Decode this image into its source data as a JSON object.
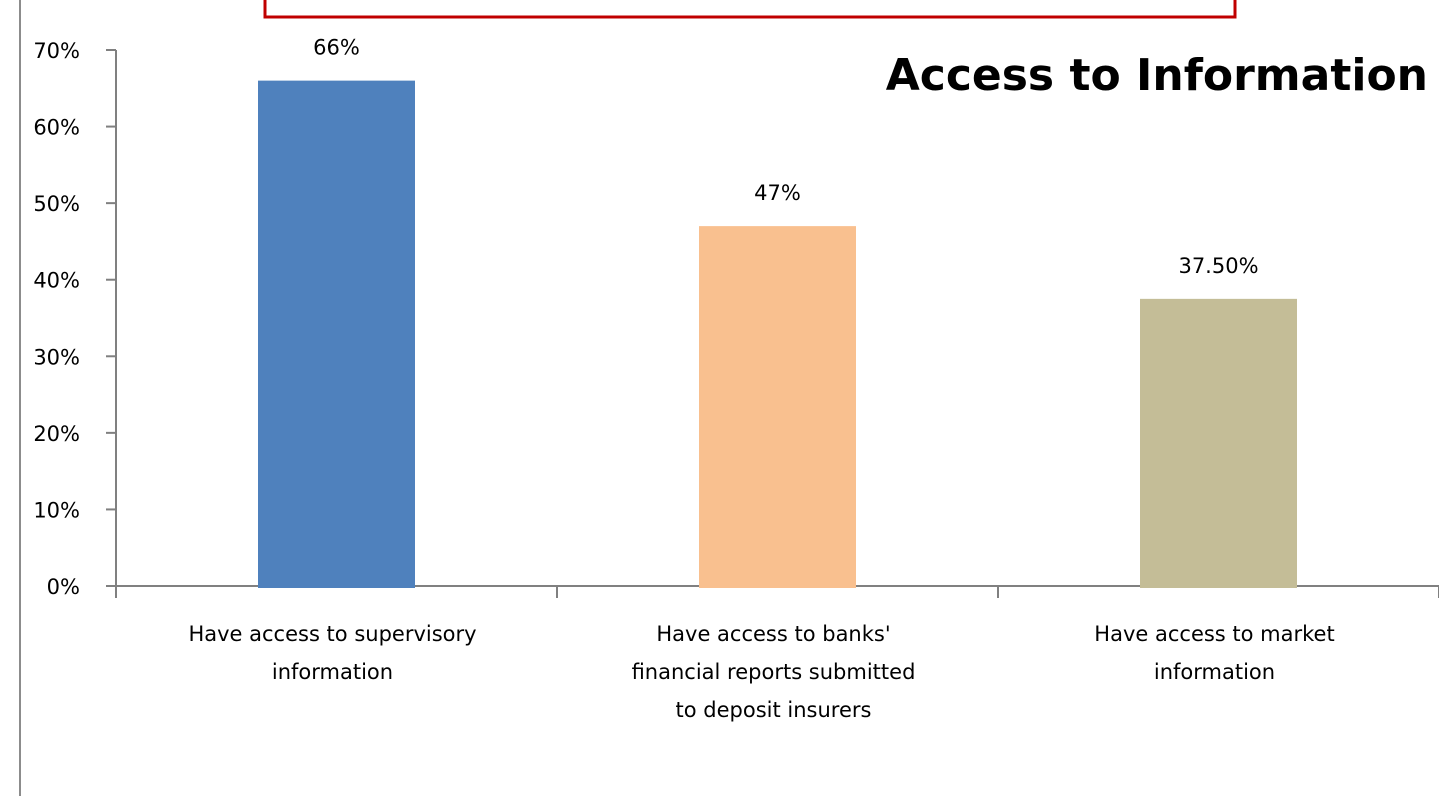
{
  "chart_data": {
    "type": "bar",
    "title": "Access to Information",
    "categories": [
      "Have access to supervisory information",
      "Have access to banks' financial reports submitted to deposit insurers",
      "Have access to market information"
    ],
    "category_lines": [
      [
        "Have access to supervisory",
        "information"
      ],
      [
        "Have access to banks'",
        "financial reports submitted",
        "to deposit insurers"
      ],
      [
        "Have access to market",
        "information"
      ]
    ],
    "values": [
      66,
      47,
      37.5
    ],
    "data_labels": [
      "66%",
      "47%",
      "37.50%"
    ],
    "colors": [
      "#4f81bd",
      "#f9c08f",
      "#c4bd97"
    ],
    "ylim": [
      0,
      70
    ],
    "yticks": [
      0,
      10,
      20,
      30,
      40,
      50,
      60,
      70
    ],
    "ytick_labels": [
      "0%",
      "10%",
      "20%",
      "30%",
      "40%",
      "50%",
      "60%",
      "70%"
    ],
    "xlabel": "",
    "ylabel": "",
    "grid": false,
    "legend": "none"
  },
  "frame": {
    "callout_border_color": "#c00000"
  }
}
